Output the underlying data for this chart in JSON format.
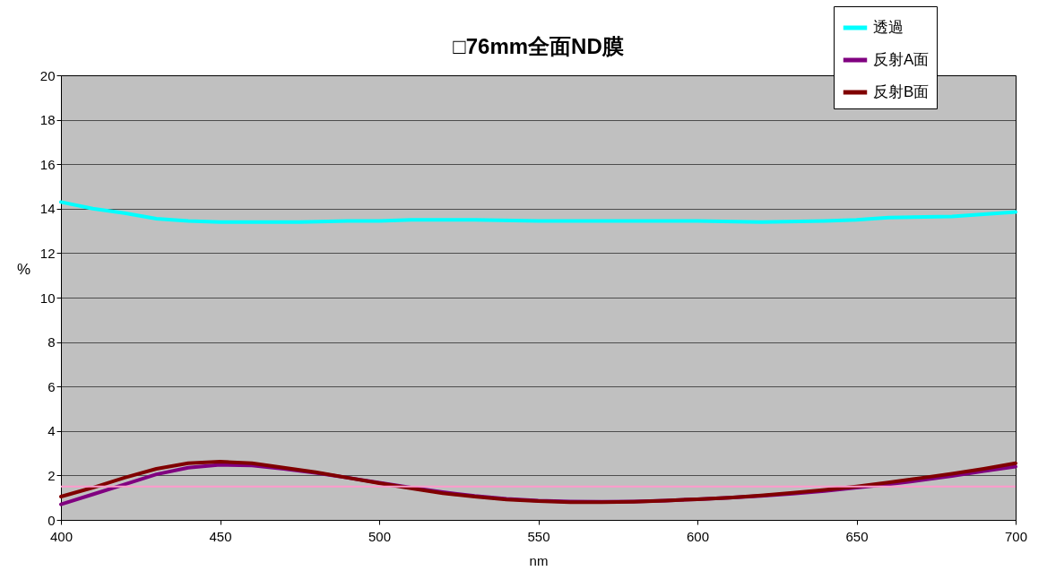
{
  "chart_data": {
    "type": "line",
    "title": "□76mm全面ND膜",
    "xlabel": "nm",
    "ylabel": "%",
    "xlim": [
      400,
      700
    ],
    "xticks": [
      400,
      450,
      500,
      550,
      600,
      650,
      700
    ],
    "ylim": [
      0,
      20
    ],
    "yticks": [
      0,
      2,
      4,
      6,
      8,
      10,
      12,
      14,
      16,
      18,
      20
    ],
    "grid": "y",
    "legend": "top right",
    "ref_lines": [
      {
        "axis": "y",
        "value": 1.5,
        "color": "#ff99cc"
      }
    ],
    "series": [
      {
        "name": "透過",
        "color": "#00ffff",
        "x": [
          400,
          410,
          420,
          430,
          440,
          450,
          460,
          475,
          490,
          500,
          510,
          530,
          550,
          575,
          600,
          620,
          640,
          650,
          660,
          680,
          690,
          700
        ],
        "values": [
          14.3,
          14.0,
          13.8,
          13.55,
          13.45,
          13.4,
          13.4,
          13.4,
          13.45,
          13.45,
          13.5,
          13.5,
          13.45,
          13.45,
          13.45,
          13.4,
          13.45,
          13.5,
          13.6,
          13.65,
          13.75,
          13.85
        ]
      },
      {
        "name": "反射A面",
        "color": "#800080",
        "x": [
          400,
          410,
          420,
          430,
          440,
          450,
          460,
          470,
          480,
          490,
          500,
          510,
          520,
          530,
          540,
          550,
          560,
          570,
          580,
          590,
          600,
          610,
          620,
          630,
          640,
          650,
          660,
          670,
          680,
          690,
          700
        ],
        "values": [
          0.7,
          1.15,
          1.6,
          2.05,
          2.35,
          2.48,
          2.45,
          2.3,
          2.12,
          1.9,
          1.67,
          1.45,
          1.25,
          1.08,
          0.95,
          0.87,
          0.83,
          0.82,
          0.83,
          0.87,
          0.93,
          1.0,
          1.08,
          1.18,
          1.3,
          1.45,
          1.6,
          1.78,
          1.98,
          2.2,
          2.4
        ]
      },
      {
        "name": "反射B面",
        "color": "#800000",
        "x": [
          400,
          410,
          420,
          430,
          440,
          450,
          460,
          470,
          480,
          490,
          500,
          510,
          520,
          530,
          540,
          550,
          560,
          570,
          580,
          590,
          600,
          610,
          620,
          630,
          640,
          650,
          660,
          670,
          680,
          690,
          700
        ],
        "values": [
          1.05,
          1.45,
          1.9,
          2.3,
          2.55,
          2.62,
          2.55,
          2.35,
          2.15,
          1.9,
          1.65,
          1.42,
          1.2,
          1.05,
          0.92,
          0.85,
          0.8,
          0.8,
          0.82,
          0.87,
          0.93,
          1.0,
          1.1,
          1.22,
          1.35,
          1.5,
          1.68,
          1.88,
          2.08,
          2.3,
          2.55
        ]
      }
    ]
  }
}
